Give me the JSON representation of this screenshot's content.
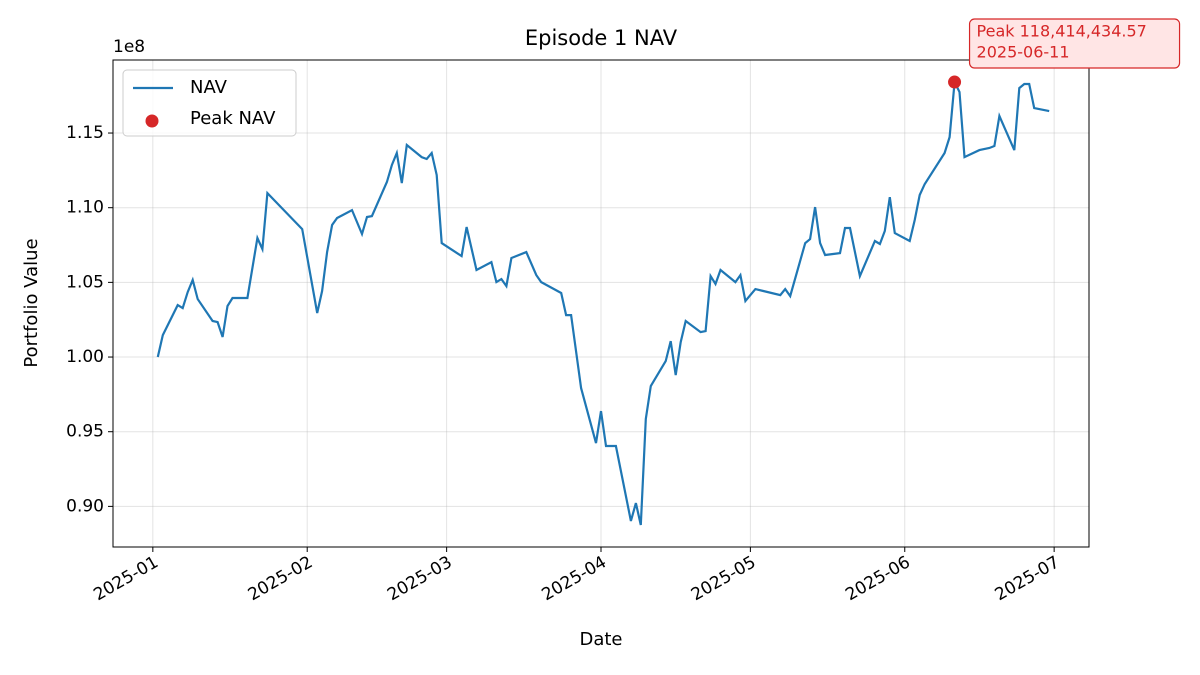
{
  "chart_data": {
    "type": "line",
    "title": "Episode 1 NAV",
    "x_label": "Date",
    "y_label": "Portfolio Value",
    "y_offset_label": "1e8",
    "x": [
      "2025-01-02",
      "2025-01-03",
      "2025-01-06",
      "2025-01-07",
      "2025-01-08",
      "2025-01-09",
      "2025-01-10",
      "2025-01-13",
      "2025-01-14",
      "2025-01-15",
      "2025-01-16",
      "2025-01-17",
      "2025-01-20",
      "2025-01-22",
      "2025-01-23",
      "2025-01-24",
      "2025-01-31",
      "2025-02-03",
      "2025-02-04",
      "2025-02-05",
      "2025-02-06",
      "2025-02-07",
      "2025-02-10",
      "2025-02-12",
      "2025-02-13",
      "2025-02-14",
      "2025-02-17",
      "2025-02-18",
      "2025-02-19",
      "2025-02-20",
      "2025-02-21",
      "2025-02-24",
      "2025-02-25",
      "2025-02-26",
      "2025-02-27",
      "2025-02-28",
      "2025-03-04",
      "2025-03-05",
      "2025-03-07",
      "2025-03-10",
      "2025-03-11",
      "2025-03-12",
      "2025-03-13",
      "2025-03-14",
      "2025-03-17",
      "2025-03-19",
      "2025-03-20",
      "2025-03-24",
      "2025-03-25",
      "2025-03-26",
      "2025-03-28",
      "2025-03-31",
      "2025-04-01",
      "2025-04-02",
      "2025-04-04",
      "2025-04-07",
      "2025-04-08",
      "2025-04-09",
      "2025-04-10",
      "2025-04-11",
      "2025-04-14",
      "2025-04-15",
      "2025-04-16",
      "2025-04-17",
      "2025-04-18",
      "2025-04-21",
      "2025-04-22",
      "2025-04-23",
      "2025-04-24",
      "2025-04-25",
      "2025-04-28",
      "2025-04-29",
      "2025-04-30",
      "2025-05-02",
      "2025-05-07",
      "2025-05-08",
      "2025-05-09",
      "2025-05-12",
      "2025-05-13",
      "2025-05-14",
      "2025-05-15",
      "2025-05-16",
      "2025-05-19",
      "2025-05-20",
      "2025-05-21",
      "2025-05-23",
      "2025-05-26",
      "2025-05-27",
      "2025-05-28",
      "2025-05-29",
      "2025-05-30",
      "2025-06-02",
      "2025-06-03",
      "2025-06-04",
      "2025-06-05",
      "2025-06-09",
      "2025-06-10",
      "2025-06-11",
      "2025-06-12",
      "2025-06-13",
      "2025-06-16",
      "2025-06-18",
      "2025-06-19",
      "2025-06-20",
      "2025-06-23",
      "2025-06-24",
      "2025-06-25",
      "2025-06-26",
      "2025-06-27",
      "2025-06-30"
    ],
    "series": [
      {
        "name": "NAV",
        "color": "#1f77b4",
        "values": [
          100000000,
          101470000,
          103480000,
          103280000,
          104350000,
          105160000,
          103880000,
          102410000,
          102340000,
          101340000,
          103420000,
          103950000,
          103950000,
          107970000,
          107230000,
          110980000,
          108570000,
          102950000,
          104420000,
          107030000,
          108840000,
          109310000,
          109840000,
          108240000,
          109380000,
          109440000,
          111720000,
          112860000,
          113660000,
          111650000,
          114200000,
          113390000,
          113260000,
          113660000,
          112190000,
          107630000,
          106760000,
          108710000,
          105830000,
          106360000,
          105020000,
          105220000,
          104750000,
          106630000,
          107030000,
          105490000,
          105020000,
          104290000,
          102810000,
          102810000,
          97920000,
          94240000,
          96380000,
          94040000,
          94040000,
          89020000,
          90220000,
          88750000,
          95850000,
          98060000,
          99730000,
          101070000,
          98790000,
          101000000,
          102410000,
          101670000,
          101740000,
          105420000,
          104890000,
          105830000,
          105020000,
          105490000,
          103750000,
          104550000,
          104150000,
          104550000,
          104080000,
          107630000,
          107900000,
          110040000,
          107630000,
          106830000,
          106960000,
          108640000,
          108640000,
          105420000,
          107770000,
          107570000,
          108440000,
          110710000,
          108300000,
          107770000,
          109170000,
          110850000,
          111580000,
          113660000,
          114730000,
          118414434.57,
          117750000,
          113390000,
          113860000,
          114000000,
          114130000,
          116140000,
          113860000,
          118010000,
          118280000,
          118280000,
          116670000,
          116470000
        ]
      },
      {
        "name": "Peak NAV",
        "color": "#d62728",
        "kind": "scatter",
        "x": [
          "2025-06-11"
        ],
        "values": [
          118414434.57
        ]
      }
    ],
    "annotation": [
      "Peak 118,414,434.57",
      "2025-06-11"
    ],
    "xlim": [
      "2024-12-24",
      "2025-07-08"
    ],
    "xticks": [
      {
        "value": "2025-01-01",
        "label": "2025-01"
      },
      {
        "value": "2025-02-01",
        "label": "2025-02"
      },
      {
        "value": "2025-03-01",
        "label": "2025-03"
      },
      {
        "value": "2025-04-01",
        "label": "2025-04"
      },
      {
        "value": "2025-05-01",
        "label": "2025-05"
      },
      {
        "value": "2025-06-01",
        "label": "2025-06"
      },
      {
        "value": "2025-07-01",
        "label": "2025-07"
      }
    ],
    "ylim": [
      87280000,
      119890000
    ],
    "yticks": [
      {
        "value": 90000000,
        "label": "0.90"
      },
      {
        "value": 95000000,
        "label": "0.95"
      },
      {
        "value": 100000000,
        "label": "1.00"
      },
      {
        "value": 105000000,
        "label": "1.05"
      },
      {
        "value": 110000000,
        "label": "1.10"
      },
      {
        "value": 115000000,
        "label": "1.15"
      }
    ],
    "grid": true,
    "legend": "upper left"
  }
}
